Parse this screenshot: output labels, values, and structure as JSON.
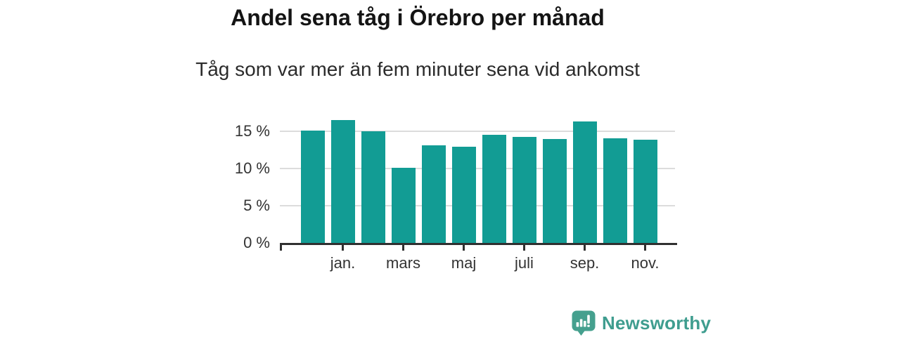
{
  "header": {
    "title": "Andel sena tåg i Örebro per månad",
    "subtitle": "Tåg som var mer än fem minuter sena vid ankomst"
  },
  "chart_data": {
    "type": "bar",
    "title": "Andel sena tåg i Örebro per månad",
    "subtitle": "Tåg som var mer än fem minuter sena vid ankomst",
    "unit": "percent",
    "bar_color": "#129C94",
    "categories": [
      "",
      "jan.",
      "",
      "mars",
      "",
      "maj",
      "",
      "juli",
      "",
      "sep.",
      "",
      "nov."
    ],
    "values": [
      15.1,
      16.5,
      15.0,
      10.1,
      13.1,
      12.9,
      14.5,
      14.2,
      14.0,
      16.3,
      14.1,
      13.9
    ],
    "x_tick_labels": [
      "jan.",
      "mars",
      "maj",
      "juli",
      "sep.",
      "nov."
    ],
    "x_tick_indices": [
      1,
      3,
      5,
      7,
      9,
      11
    ],
    "y_tick_labels": [
      "0 %",
      "5 %",
      "10 %",
      "15 %"
    ],
    "y_tick_values": [
      0,
      5,
      10,
      15
    ],
    "ylim": [
      0,
      17.4
    ],
    "grid": true,
    "legend": false
  },
  "brand": {
    "name": "Newsworthy",
    "text_color": "#3F9D8F",
    "icon_color": "#45A08E",
    "icon": "newsworthy-speech-bubble-bar-chart-icon"
  },
  "style": {
    "axis_color": "#303030",
    "grid_color": "#dcdcdc",
    "tick_label_color": "#333333"
  }
}
